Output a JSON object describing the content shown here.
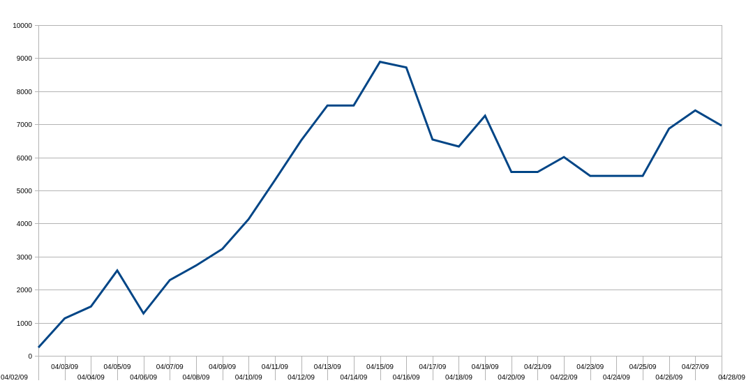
{
  "chart_data": {
    "type": "line",
    "title": "",
    "xlabel": "",
    "ylabel": "",
    "ylim": [
      0,
      10000
    ],
    "yticks": [
      0,
      1000,
      2000,
      3000,
      4000,
      5000,
      6000,
      7000,
      8000,
      9000,
      10000
    ],
    "grid": true,
    "legend": "none",
    "categories": [
      "04/02/09",
      "04/03/09",
      "04/04/09",
      "04/05/09",
      "04/06/09",
      "04/07/09",
      "04/08/09",
      "04/09/09",
      "04/10/09",
      "04/11/09",
      "04/12/09",
      "04/13/09",
      "04/14/09",
      "04/15/09",
      "04/16/09",
      "04/17/09",
      "04/18/09",
      "04/19/09",
      "04/20/09",
      "04/21/09",
      "04/22/09",
      "04/23/09",
      "04/24/09",
      "04/25/09",
      "04/26/09",
      "04/27/09",
      "04/28/09"
    ],
    "series": [
      {
        "color": "#004586",
        "values": [
          250,
          1130,
          1490,
          2580,
          1280,
          2290,
          2730,
          3230,
          4130,
          5310,
          6510,
          7570,
          7570,
          8890,
          8720,
          6540,
          6330,
          7260,
          5560,
          5560,
          6010,
          5440,
          5440,
          5440,
          6870,
          7420,
          6960
        ]
      }
    ]
  }
}
